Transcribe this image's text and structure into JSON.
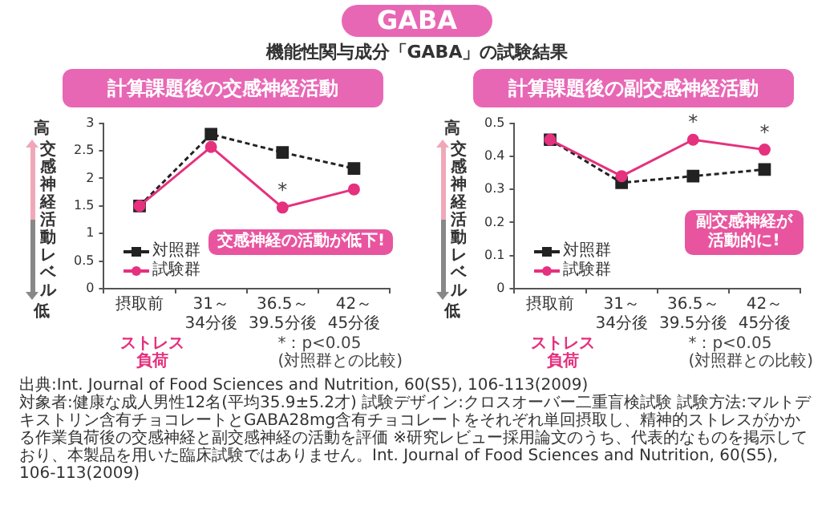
{
  "chart_data": [
    {
      "type": "other",
      "title": "GABA",
      "subtitle": "機能性関与成分「GABA」の試験結果",
      "annotations": [
        "出典:Int. Journal of Food Sciences and Nutrition, 60(S5), 106-113(2009)",
        "対象者:健康な成人男性12名(平均35.9±5.2才) 試験デザイン:クロスオーバー二重盲検試験 試験方法:マルトデキストリン含有チョコレートとGABA28mg含有チョコレートをそれぞれ単回摂取し、精神的ストレスがかかる作業負荷後の交感神経と副交感神経の活動を評価 ※研究レビュー採用論文のうち、代表的なものを掲示しており、本製品を用いた臨床試験ではありません。Int. Journal of Food Sciences and Nutrition, 60(S5), 106-113(2009)"
      ]
    },
    {
      "type": "line",
      "title": "計算課題後の交感神経活動",
      "ylabel": "交感神経活動レベル",
      "categories": [
        "摂取前",
        "31～34分後",
        "36.5～39.5分後",
        "42～45分後"
      ],
      "series": [
        {
          "name": "対照群",
          "color": "#222222",
          "marker": "square",
          "line_style": "dashed",
          "values": [
            1.5,
            2.8,
            2.47,
            2.18
          ]
        },
        {
          "name": "試験群",
          "color": "#e5317e",
          "marker": "circle",
          "line_style": "solid",
          "values": [
            1.5,
            2.57,
            1.47,
            1.8
          ]
        }
      ],
      "ylim": [
        0,
        3
      ],
      "yticks": [
        0,
        0.5,
        1,
        1.5,
        2,
        2.5,
        3
      ],
      "grid": false,
      "legend": "bottom left",
      "annotations": [
        {
          "text": "*",
          "x": "36.5～39.5分後",
          "y": 1.47
        },
        "交感神経の活動が低下!",
        "ストレス負荷",
        "*：p<0.05\n(対照群との比較)",
        "高",
        "低"
      ]
    },
    {
      "type": "line",
      "title": "計算課題後の副交感神経活動",
      "ylabel": "交感神経活動レベル",
      "categories": [
        "摂取前",
        "31～34分後",
        "36.5～39.5分後",
        "42～45分後"
      ],
      "series": [
        {
          "name": "対照群",
          "color": "#222222",
          "marker": "square",
          "line_style": "dashed",
          "values": [
            0.45,
            0.32,
            0.34,
            0.36
          ]
        },
        {
          "name": "試験群",
          "color": "#e5317e",
          "marker": "circle",
          "line_style": "solid",
          "values": [
            0.45,
            0.34,
            0.45,
            0.42
          ]
        }
      ],
      "ylim": [
        0,
        0.5
      ],
      "yticks": [
        0,
        0.1,
        0.2,
        0.3,
        0.4,
        0.5
      ],
      "grid": false,
      "legend": "bottom left",
      "annotations": [
        {
          "text": "*",
          "x": "36.5～39.5分後",
          "y": 0.45
        },
        {
          "text": "*",
          "x": "42～45分後",
          "y": 0.42
        },
        "副交感神経が活動的に!",
        "ストレス負荷",
        "*：p<0.05\n(対照群との比較)",
        "高",
        "低"
      ]
    }
  ]
}
